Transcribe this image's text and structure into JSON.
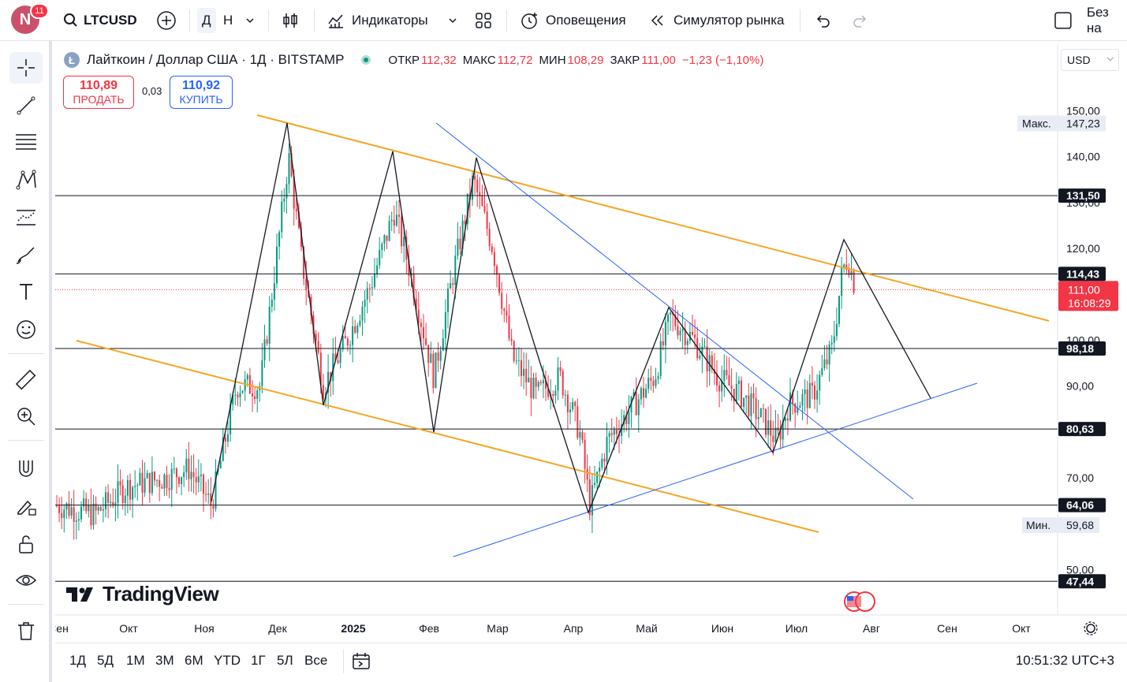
{
  "topbar": {
    "avatar_letter": "N",
    "avatar_badge": "11",
    "symbol": "LTCUSD",
    "interval_d": "Д",
    "interval_h": "Н",
    "indicators": "Индикаторы",
    "alerts": "Оповещения",
    "replay": "Симулятор рынка",
    "extra": "Без на"
  },
  "legend": {
    "title": "Лайткоин / Доллар США · 1Д · BITSTAMP",
    "open_label": "ОТКР",
    "open": "112,32",
    "high_label": "МАКС",
    "high": "112,72",
    "low_label": "МИН",
    "low": "108,29",
    "close_label": "ЗАКР",
    "close": "111,00",
    "change": "−1,23 (−1,10%)"
  },
  "trade": {
    "sell_price": "110,89",
    "sell_label": "ПРОДАТЬ",
    "spread": "0,03",
    "buy_price": "110,92",
    "buy_label": "КУПИТЬ"
  },
  "currency": "USD",
  "yaxis": {
    "ticks": [
      "150,00",
      "140,00",
      "130,00",
      "120,00",
      "100,00",
      "90,00",
      "70,00",
      "50,00"
    ],
    "max_label": "Макс.",
    "max_value": "147,23",
    "min_label": "Мин.",
    "min_value": "59,68",
    "level_labels": [
      "131,50",
      "114,43",
      "98,18",
      "80,63",
      "64,06",
      "47,44"
    ],
    "current_price": "111,00",
    "countdown": "16:08:29"
  },
  "xaxis": {
    "labels": [
      "Сен",
      "Окт",
      "Ноя",
      "Дек",
      "2025",
      "Фев",
      "Мар",
      "Апр",
      "Май",
      "Июн",
      "Июл",
      "Авг",
      "Сен",
      "Окт"
    ]
  },
  "bottom": {
    "ranges": [
      "1Д",
      "5Д",
      "1М",
      "3М",
      "6М",
      "YTD",
      "1Г",
      "5Л",
      "Все"
    ],
    "clock": "10:51:32 UTC+3"
  },
  "brand": "TradingView",
  "colors": {
    "up": "#089981",
    "down": "#f23645",
    "channel": "#f5a623",
    "trend": "#2962ff"
  }
}
